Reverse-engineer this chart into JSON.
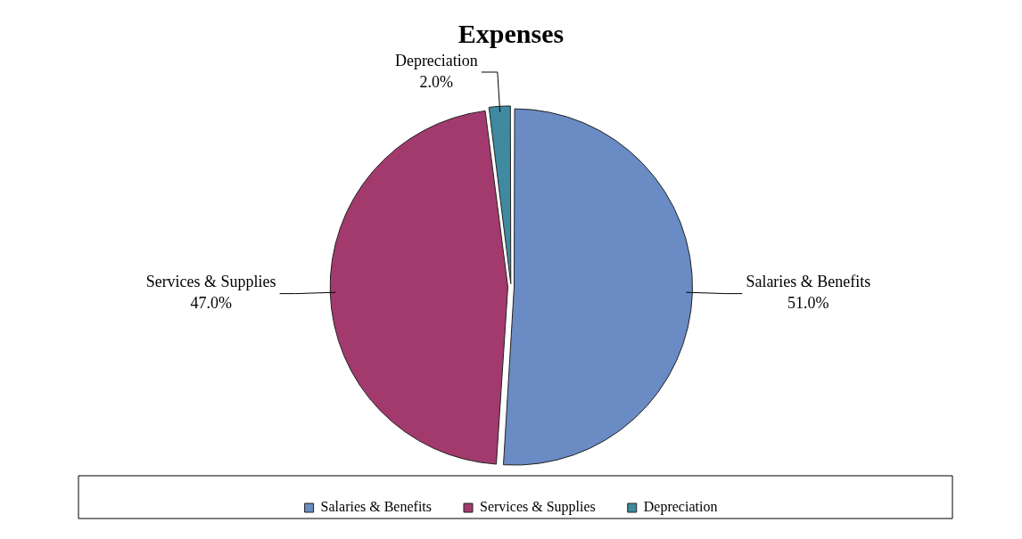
{
  "chart_data": {
    "type": "pie",
    "title": "Expenses",
    "categories": [
      "Salaries & Benefits",
      "Services & Supplies",
      "Depreciation"
    ],
    "values": [
      51,
      47,
      2
    ],
    "value_labels": [
      "51.0%",
      "47.0%",
      "2.0%"
    ],
    "colors": [
      "#6a8bc4",
      "#a33a6e",
      "#3f8aa0"
    ],
    "legend": "bottom"
  }
}
